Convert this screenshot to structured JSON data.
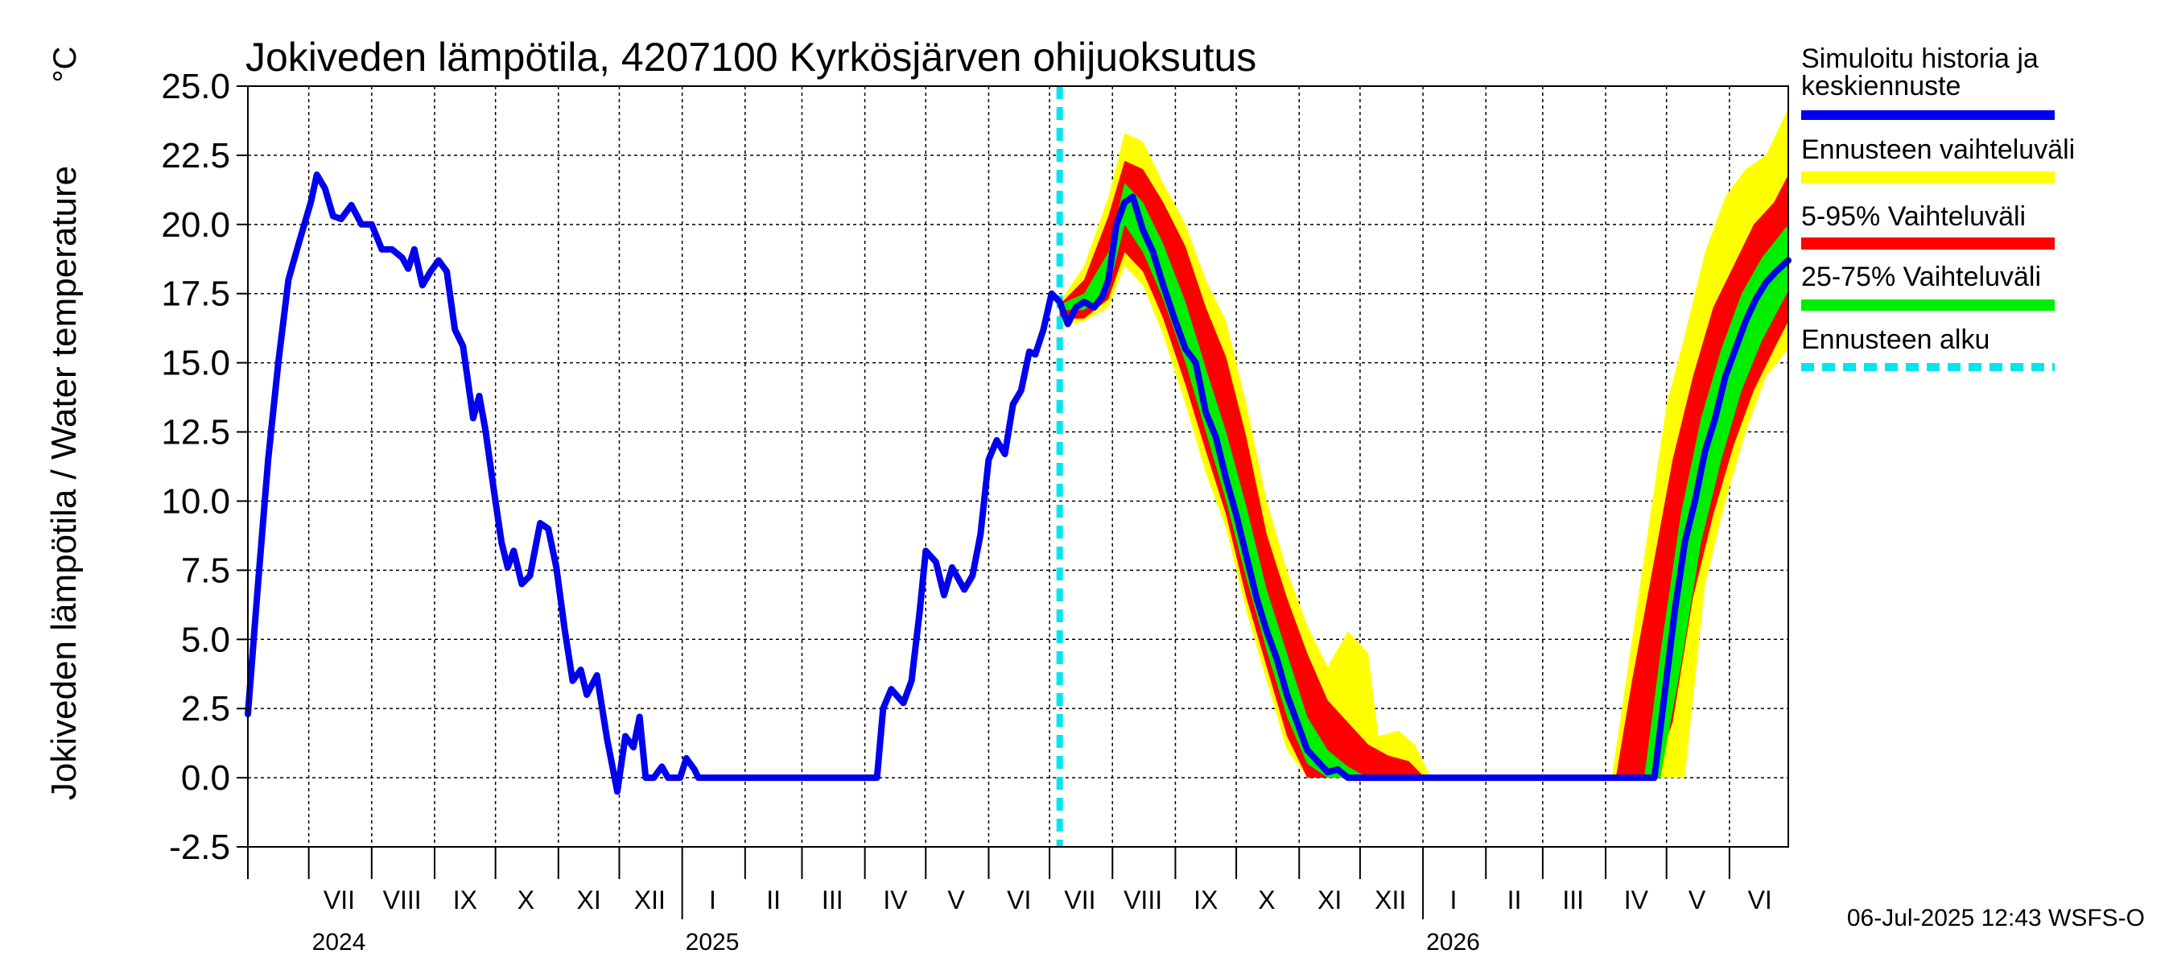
{
  "chart_data": {
    "type": "area",
    "title": "Jokiveden lämpötila, 4207100 Kyrkösjärven ohijuoksutus",
    "ylabel": "Jokiveden lämpötila / Water temperature",
    "unit_label": "°C",
    "ylim": [
      -2.5,
      25.0
    ],
    "yticks": [
      "25.0",
      "22.5",
      "20.0",
      "17.5",
      "15.0",
      "12.5",
      "10.0",
      "7.5",
      "5.0",
      "2.5",
      "0.0",
      "-2.5"
    ],
    "xlim": [
      "2024-06-01",
      "2026-06-30"
    ],
    "forecast_start": "2025-07-06",
    "grid": true,
    "legend_position": "right",
    "footer": "06-Jul-2025 12:43 WSFS-O",
    "month_labels": [
      {
        "label": "VII",
        "date": "2024-07-16"
      },
      {
        "label": "VIII",
        "date": "2024-08-16"
      },
      {
        "label": "IX",
        "date": "2024-09-16"
      },
      {
        "label": "X",
        "date": "2024-10-16"
      },
      {
        "label": "XI",
        "date": "2024-11-16"
      },
      {
        "label": "XII",
        "date": "2024-12-16"
      },
      {
        "label": "I",
        "date": "2025-01-16"
      },
      {
        "label": "II",
        "date": "2025-02-15"
      },
      {
        "label": "III",
        "date": "2025-03-16"
      },
      {
        "label": "IV",
        "date": "2025-04-16"
      },
      {
        "label": "V",
        "date": "2025-05-16"
      },
      {
        "label": "VI",
        "date": "2025-06-16"
      },
      {
        "label": "VII",
        "date": "2025-07-16"
      },
      {
        "label": "VIII",
        "date": "2025-08-16"
      },
      {
        "label": "IX",
        "date": "2025-09-16"
      },
      {
        "label": "X",
        "date": "2025-10-16"
      },
      {
        "label": "XI",
        "date": "2025-11-16"
      },
      {
        "label": "XII",
        "date": "2025-12-16"
      },
      {
        "label": "I",
        "date": "2026-01-16"
      },
      {
        "label": "II",
        "date": "2026-02-15"
      },
      {
        "label": "III",
        "date": "2026-03-16"
      },
      {
        "label": "IV",
        "date": "2026-04-16"
      },
      {
        "label": "V",
        "date": "2026-05-16"
      },
      {
        "label": "VI",
        "date": "2026-06-16"
      }
    ],
    "year_labels": [
      {
        "label": "2024",
        "date": "2024-07-01"
      },
      {
        "label": "2025",
        "date": "2025-01-01"
      },
      {
        "label": "2026",
        "date": "2026-01-01"
      }
    ],
    "legend": [
      {
        "label": "Simuloitu historia ja keskiennuste",
        "label_line1": "Simuloitu historia ja",
        "label_line2": "keskiennuste",
        "color": "#0000ee",
        "style": "solid"
      },
      {
        "label": "Ennusteen vaihteluväli",
        "color": "#ffff00",
        "style": "solid"
      },
      {
        "label": "5-95% Vaihteluväli",
        "color": "#ff0000",
        "style": "solid"
      },
      {
        "label": "25-75% Vaihteluväli",
        "color": "#00ee00",
        "style": "solid"
      },
      {
        "label": "Ennusteen alku",
        "color": "#00e5ee",
        "style": "dashed"
      }
    ],
    "series": [
      {
        "name": "Simuloitu historia ja keskiennuste",
        "color": "#0000ee",
        "points": [
          [
            "2024-06-01",
            2.3
          ],
          [
            "2024-06-06",
            7.0
          ],
          [
            "2024-06-11",
            11.5
          ],
          [
            "2024-06-16",
            15.0
          ],
          [
            "2024-06-21",
            18.0
          ],
          [
            "2024-06-26",
            19.3
          ],
          [
            "2024-07-02",
            20.8
          ],
          [
            "2024-07-05",
            21.8
          ],
          [
            "2024-07-09",
            21.3
          ],
          [
            "2024-07-13",
            20.3
          ],
          [
            "2024-07-17",
            20.2
          ],
          [
            "2024-07-22",
            20.7
          ],
          [
            "2024-07-27",
            20.0
          ],
          [
            "2024-08-01",
            20.0
          ],
          [
            "2024-08-06",
            19.1
          ],
          [
            "2024-08-11",
            19.1
          ],
          [
            "2024-08-16",
            18.8
          ],
          [
            "2024-08-19",
            18.4
          ],
          [
            "2024-08-22",
            19.1
          ],
          [
            "2024-08-26",
            17.8
          ],
          [
            "2024-08-30",
            18.3
          ],
          [
            "2024-09-03",
            18.7
          ],
          [
            "2024-09-07",
            18.3
          ],
          [
            "2024-09-11",
            16.2
          ],
          [
            "2024-09-15",
            15.6
          ],
          [
            "2024-09-20",
            13.0
          ],
          [
            "2024-09-23",
            13.8
          ],
          [
            "2024-09-26",
            12.6
          ],
          [
            "2024-09-30",
            10.5
          ],
          [
            "2024-10-04",
            8.5
          ],
          [
            "2024-10-07",
            7.6
          ],
          [
            "2024-10-10",
            8.2
          ],
          [
            "2024-10-14",
            7.0
          ],
          [
            "2024-10-18",
            7.3
          ],
          [
            "2024-10-23",
            9.2
          ],
          [
            "2024-10-27",
            9.0
          ],
          [
            "2024-10-31",
            7.6
          ],
          [
            "2024-11-04",
            5.4
          ],
          [
            "2024-11-08",
            3.5
          ],
          [
            "2024-11-12",
            3.9
          ],
          [
            "2024-11-15",
            3.0
          ],
          [
            "2024-11-20",
            3.7
          ],
          [
            "2024-11-25",
            1.4
          ],
          [
            "2024-11-30",
            -0.5
          ],
          [
            "2024-12-04",
            1.5
          ],
          [
            "2024-12-08",
            1.1
          ],
          [
            "2024-12-11",
            2.2
          ],
          [
            "2024-12-14",
            0.0
          ],
          [
            "2024-12-18",
            0.0
          ],
          [
            "2024-12-22",
            0.4
          ],
          [
            "2024-12-25",
            0.0
          ],
          [
            "2024-12-31",
            0.0
          ],
          [
            "2025-01-03",
            0.7
          ],
          [
            "2025-01-07",
            0.3
          ],
          [
            "2025-01-09",
            0.0
          ],
          [
            "2025-04-07",
            0.0
          ],
          [
            "2025-04-10",
            2.5
          ],
          [
            "2025-04-14",
            3.2
          ],
          [
            "2025-04-20",
            2.7
          ],
          [
            "2025-04-24",
            3.5
          ],
          [
            "2025-04-28",
            6.0
          ],
          [
            "2025-05-01",
            8.2
          ],
          [
            "2025-05-06",
            7.8
          ],
          [
            "2025-05-10",
            6.6
          ],
          [
            "2025-05-14",
            7.6
          ],
          [
            "2025-05-20",
            6.8
          ],
          [
            "2025-05-24",
            7.3
          ],
          [
            "2025-05-28",
            8.8
          ],
          [
            "2025-06-01",
            11.5
          ],
          [
            "2025-06-05",
            12.2
          ],
          [
            "2025-06-09",
            11.7
          ],
          [
            "2025-06-13",
            13.5
          ],
          [
            "2025-06-17",
            14.0
          ],
          [
            "2025-06-21",
            15.4
          ],
          [
            "2025-06-24",
            15.3
          ],
          [
            "2025-06-28",
            16.2
          ],
          [
            "2025-07-02",
            17.5
          ],
          [
            "2025-07-06",
            17.2
          ],
          [
            "2025-07-10",
            16.4
          ],
          [
            "2025-07-14",
            17.0
          ],
          [
            "2025-07-18",
            17.2
          ],
          [
            "2025-07-23",
            17.0
          ],
          [
            "2025-07-27",
            17.4
          ],
          [
            "2025-07-30",
            18.0
          ],
          [
            "2025-08-03",
            20.0
          ],
          [
            "2025-08-07",
            20.8
          ],
          [
            "2025-08-11",
            21.0
          ],
          [
            "2025-08-16",
            19.8
          ],
          [
            "2025-08-21",
            19.0
          ],
          [
            "2025-08-26",
            17.8
          ],
          [
            "2025-09-01",
            16.5
          ],
          [
            "2025-09-06",
            15.5
          ],
          [
            "2025-09-11",
            15.0
          ],
          [
            "2025-09-16",
            13.2
          ],
          [
            "2025-09-21",
            12.3
          ],
          [
            "2025-09-26",
            10.8
          ],
          [
            "2025-10-01",
            9.5
          ],
          [
            "2025-10-06",
            8.0
          ],
          [
            "2025-10-11",
            6.5
          ],
          [
            "2025-10-16",
            5.3
          ],
          [
            "2025-10-21",
            4.3
          ],
          [
            "2025-10-26",
            3.0
          ],
          [
            "2025-10-31",
            2.0
          ],
          [
            "2025-11-05",
            1.0
          ],
          [
            "2025-11-10",
            0.6
          ],
          [
            "2025-11-15",
            0.2
          ],
          [
            "2025-11-20",
            0.3
          ],
          [
            "2025-11-25",
            0.0
          ],
          [
            "2026-04-25",
            0.0
          ],
          [
            "2026-04-30",
            3.0
          ],
          [
            "2026-05-05",
            6.0
          ],
          [
            "2026-05-10",
            8.5
          ],
          [
            "2026-05-15",
            10.0
          ],
          [
            "2026-05-20",
            11.8
          ],
          [
            "2026-05-25",
            13.0
          ],
          [
            "2026-05-30",
            14.5
          ],
          [
            "2026-06-04",
            15.5
          ],
          [
            "2026-06-09",
            16.5
          ],
          [
            "2026-06-14",
            17.3
          ],
          [
            "2026-06-19",
            17.9
          ],
          [
            "2026-06-24",
            18.3
          ],
          [
            "2026-06-30",
            18.7
          ]
        ]
      },
      {
        "name": "Ennusteen vaihteluväli",
        "color": "#ffff00",
        "band": [
          [
            "2025-07-06",
            16.3,
            17.2
          ],
          [
            "2025-07-18",
            16.5,
            18.5
          ],
          [
            "2025-07-30",
            17.0,
            21.0
          ],
          [
            "2025-08-07",
            18.5,
            23.3
          ],
          [
            "2025-08-16",
            17.8,
            23.0
          ],
          [
            "2025-08-26",
            16.0,
            21.5
          ],
          [
            "2025-09-06",
            13.5,
            20.0
          ],
          [
            "2025-09-16",
            11.0,
            18.0
          ],
          [
            "2025-09-26",
            9.0,
            16.5
          ],
          [
            "2025-10-06",
            6.0,
            13.5
          ],
          [
            "2025-10-16",
            3.5,
            10.0
          ],
          [
            "2025-10-26",
            1.0,
            7.5
          ],
          [
            "2025-11-05",
            0.0,
            5.5
          ],
          [
            "2025-11-15",
            0.0,
            4.0
          ],
          [
            "2025-11-25",
            0.0,
            5.3
          ],
          [
            "2025-12-05",
            0.0,
            4.5
          ],
          [
            "2025-12-10",
            0.0,
            1.5
          ],
          [
            "2025-12-20",
            0.0,
            1.7
          ],
          [
            "2025-12-28",
            0.0,
            1.2
          ],
          [
            "2026-01-05",
            0.0,
            0.0
          ],
          [
            "2026-04-04",
            0.0,
            0.0
          ],
          [
            "2026-04-10",
            0.0,
            3.0
          ],
          [
            "2026-04-20",
            0.0,
            8.0
          ],
          [
            "2026-05-01",
            0.0,
            13.5
          ],
          [
            "2026-05-10",
            0.0,
            16.0
          ],
          [
            "2026-05-20",
            7.0,
            19.0
          ],
          [
            "2026-05-30",
            10.0,
            21.0
          ],
          [
            "2026-06-09",
            12.5,
            22.0
          ],
          [
            "2026-06-19",
            14.5,
            22.5
          ],
          [
            "2026-06-30",
            15.5,
            24.2
          ]
        ]
      },
      {
        "name": "5-95% Vaihteluväli",
        "color": "#ff0000",
        "band": [
          [
            "2025-07-06",
            16.6,
            17.1
          ],
          [
            "2025-07-18",
            16.6,
            18.0
          ],
          [
            "2025-07-30",
            17.3,
            20.3
          ],
          [
            "2025-08-07",
            19.0,
            22.3
          ],
          [
            "2025-08-16",
            18.3,
            22.0
          ],
          [
            "2025-08-26",
            16.6,
            20.8
          ],
          [
            "2025-09-06",
            14.2,
            19.2
          ],
          [
            "2025-09-16",
            11.8,
            17.0
          ],
          [
            "2025-09-26",
            9.5,
            15.2
          ],
          [
            "2025-10-06",
            6.5,
            12.3
          ],
          [
            "2025-10-16",
            4.0,
            8.8
          ],
          [
            "2025-10-26",
            1.5,
            6.5
          ],
          [
            "2025-11-05",
            0.0,
            4.5
          ],
          [
            "2025-11-15",
            0.0,
            2.8
          ],
          [
            "2025-11-25",
            0.0,
            2.0
          ],
          [
            "2025-12-05",
            0.0,
            1.2
          ],
          [
            "2025-12-15",
            0.0,
            0.8
          ],
          [
            "2025-12-25",
            0.0,
            0.6
          ],
          [
            "2026-01-02",
            0.0,
            0.0
          ],
          [
            "2026-04-06",
            0.0,
            0.0
          ],
          [
            "2026-04-14",
            0.0,
            3.5
          ],
          [
            "2026-04-24",
            0.0,
            7.5
          ],
          [
            "2026-05-04",
            2.0,
            11.5
          ],
          [
            "2026-05-14",
            6.5,
            14.5
          ],
          [
            "2026-05-24",
            9.5,
            17.0
          ],
          [
            "2026-06-03",
            12.0,
            18.5
          ],
          [
            "2026-06-13",
            14.0,
            20.0
          ],
          [
            "2026-06-23",
            15.5,
            20.8
          ],
          [
            "2026-06-30",
            16.5,
            21.8
          ]
        ]
      },
      {
        "name": "25-75% Vaihteluväli",
        "color": "#00ee00",
        "band": [
          [
            "2025-07-06",
            16.9,
            17.1
          ],
          [
            "2025-07-18",
            16.9,
            17.5
          ],
          [
            "2025-07-30",
            17.6,
            19.0
          ],
          [
            "2025-08-07",
            20.0,
            21.5
          ],
          [
            "2025-08-16",
            19.0,
            20.8
          ],
          [
            "2025-08-26",
            17.3,
            19.3
          ],
          [
            "2025-09-06",
            15.0,
            17.2
          ],
          [
            "2025-09-16",
            12.5,
            14.8
          ],
          [
            "2025-09-26",
            10.0,
            12.5
          ],
          [
            "2025-10-06",
            7.2,
            9.8
          ],
          [
            "2025-10-16",
            4.6,
            6.8
          ],
          [
            "2025-10-26",
            2.2,
            4.5
          ],
          [
            "2025-11-05",
            0.5,
            2.2
          ],
          [
            "2025-11-15",
            0.0,
            1.0
          ],
          [
            "2025-11-25",
            0.0,
            0.4
          ],
          [
            "2025-12-05",
            0.0,
            0.0
          ],
          [
            "2026-04-20",
            0.0,
            0.0
          ],
          [
            "2026-04-28",
            0.0,
            4.5
          ],
          [
            "2026-05-08",
            4.0,
            9.5
          ],
          [
            "2026-05-18",
            8.5,
            13.0
          ],
          [
            "2026-05-28",
            11.5,
            15.5
          ],
          [
            "2026-06-07",
            14.0,
            17.5
          ],
          [
            "2026-06-17",
            15.8,
            18.8
          ],
          [
            "2026-06-30",
            17.6,
            20.0
          ]
        ]
      }
    ]
  }
}
